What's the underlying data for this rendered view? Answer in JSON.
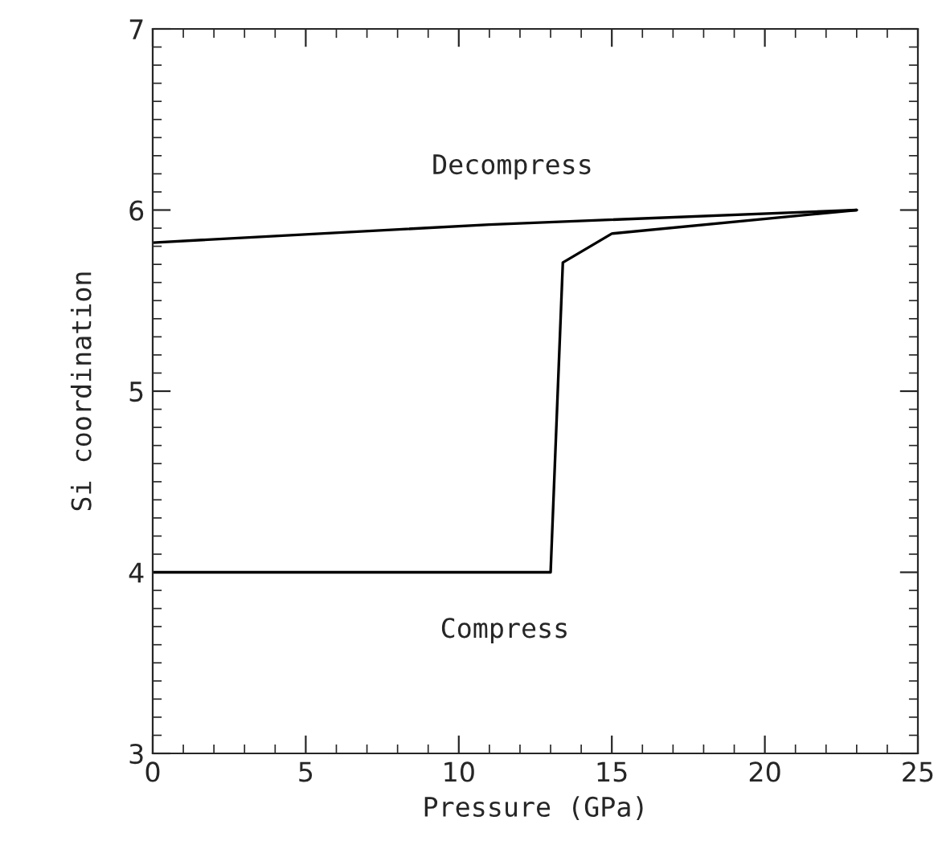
{
  "chart_data": {
    "type": "line",
    "xlabel": "Pressure (GPa)",
    "ylabel": "Si coordination",
    "annotations": [
      "Decompress",
      "Compress"
    ],
    "series": [
      {
        "color": "#000000",
        "x": [
          0,
          11,
          23
        ],
        "values": [
          5.82,
          5.92,
          6.0
        ]
      },
      {
        "color": "#000000",
        "x": [
          0,
          13,
          13.4,
          15,
          23
        ],
        "values": [
          4.0,
          4.0,
          5.71,
          5.87,
          6.0
        ]
      }
    ],
    "xlim": [
      0,
      25
    ],
    "xticks": [
      0,
      5,
      10,
      15,
      20,
      25
    ],
    "ylim": [
      3,
      7
    ],
    "yticks": [
      3,
      4,
      5,
      6,
      7
    ],
    "grid": false,
    "legend": false,
    "marker": "none",
    "line_style": "solid"
  }
}
